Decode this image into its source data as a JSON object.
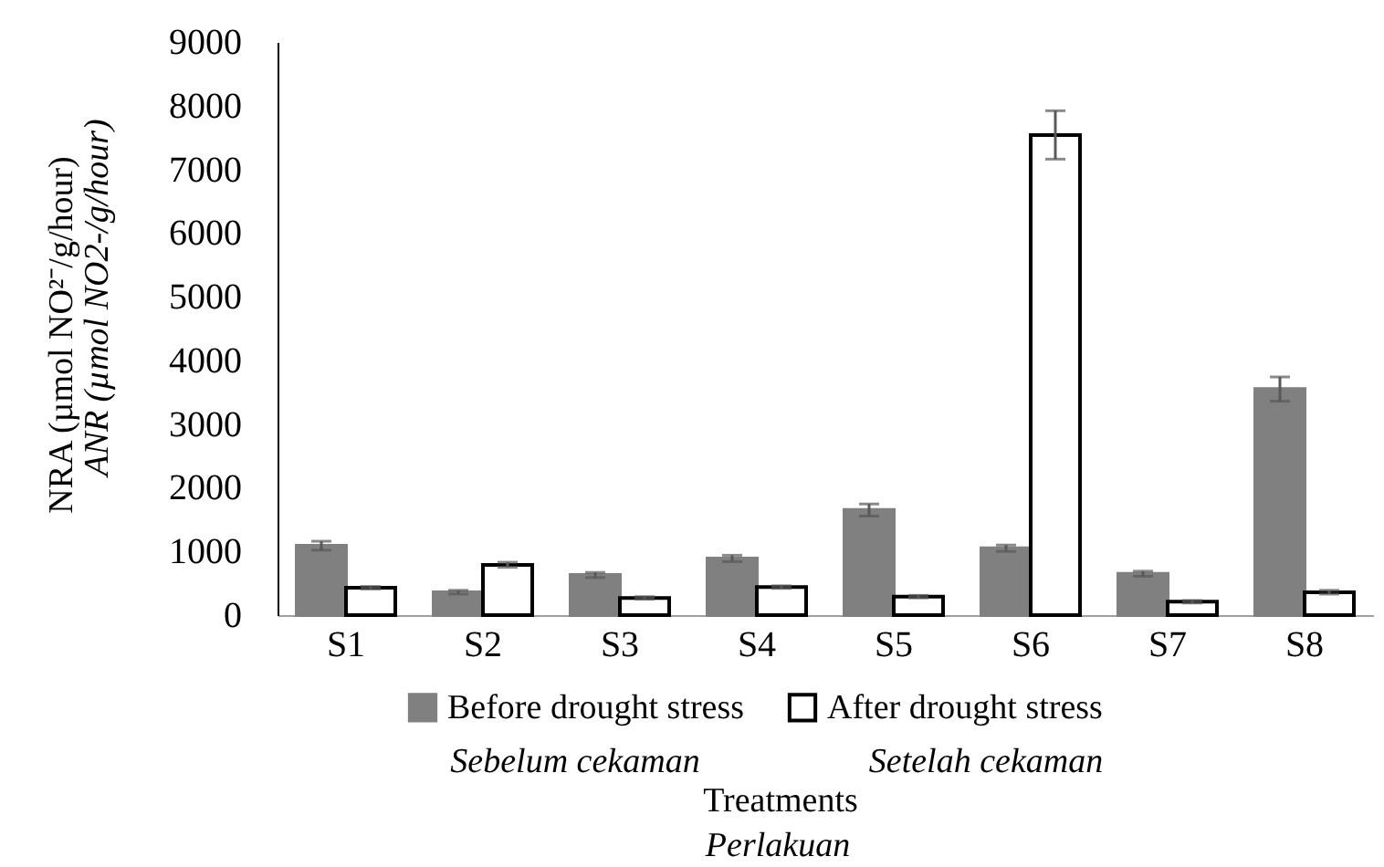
{
  "chart_data": {
    "type": "bar",
    "ylabel": "NRA (µmol NO²⁻/g/hour)",
    "xlabel": "Treatments",
    "categories": [
      "S1",
      "S2",
      "S3",
      "S4",
      "S5",
      "S6",
      "S7",
      "S8"
    ],
    "series": [
      {
        "name": "Before drought stress",
        "color": "#808080",
        "values": [
          1090,
          360,
          630,
          890,
          1650,
          1050,
          650,
          3550
        ],
        "errors": [
          70,
          30,
          40,
          50,
          95,
          50,
          40,
          190
        ]
      },
      {
        "name": "After drought stress",
        "color": "#ffffff",
        "values": [
          430,
          790,
          270,
          440,
          290,
          7540,
          210,
          360
        ],
        "errors": [
          20,
          40,
          20,
          20,
          20,
          380,
          20,
          30
        ]
      }
    ],
    "ylim": [
      0,
      9000
    ],
    "yticks": [
      0,
      1000,
      2000,
      3000,
      4000,
      5000,
      6000,
      7000,
      8000,
      9000
    ],
    "grid": false,
    "legend": "bottom",
    "annotations": [
      "ANR (µmol NO2-/g/hour)",
      "Sebelum cekaman",
      "Setelah cekaman",
      "Perlakuan"
    ]
  }
}
